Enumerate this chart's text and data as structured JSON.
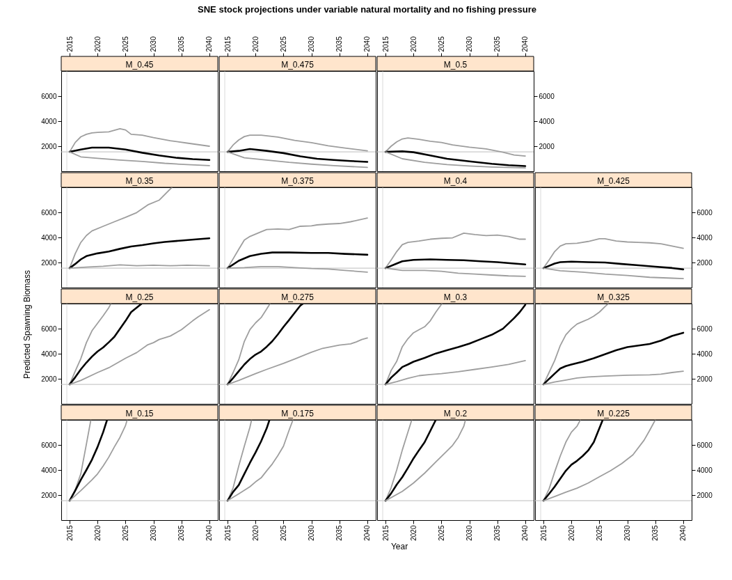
{
  "chart_data": [
    {
      "type": "line",
      "title": "M_0.45",
      "xlim": [
        2013.5,
        2041.5
      ],
      "xticks": [
        2015,
        2020,
        2025,
        2030,
        2035,
        2040
      ],
      "ylim": [
        0,
        8000
      ],
      "yticks": [
        2000,
        4000,
        6000
      ],
      "ref_lines": [
        {
          "axis": "y",
          "value": 1550,
          "color": "#bdbdbd"
        },
        {
          "axis": "x",
          "value": 2014.5,
          "color": "#d9d9d9"
        }
      ],
      "series": [
        {
          "color": "#9e9e9e",
          "x": [
            2015,
            2016,
            2017,
            2018,
            2019,
            2020,
            2022,
            2024,
            2025,
            2026,
            2028,
            2030,
            2033,
            2036,
            2040
          ],
          "values": [
            1550,
            2300,
            2750,
            2950,
            3060,
            3100,
            3150,
            3390,
            3300,
            2950,
            2880,
            2690,
            2440,
            2250,
            2000
          ]
        },
        {
          "color": "#000000",
          "x": [
            2015,
            2017,
            2019,
            2022,
            2025,
            2028,
            2031,
            2034,
            2037,
            2040
          ],
          "values": [
            1550,
            1740,
            1890,
            1890,
            1740,
            1480,
            1260,
            1080,
            970,
            900
          ]
        },
        {
          "color": "#9e9e9e",
          "x": [
            2015,
            2017,
            2020,
            2024,
            2028,
            2032,
            2036,
            2040
          ],
          "values": [
            1550,
            1150,
            1040,
            900,
            790,
            640,
            530,
            450
          ]
        }
      ]
    },
    {
      "type": "line",
      "title": "M_0.475",
      "xlim": [
        2013.5,
        2041.5
      ],
      "xticks": [
        2015,
        2020,
        2025,
        2030,
        2035,
        2040
      ],
      "ylim": [
        0,
        8000
      ],
      "tick_labels": "x",
      "ref_lines": [
        {
          "axis": "y",
          "value": 1550,
          "color": "#bdbdbd"
        },
        {
          "axis": "x",
          "value": 2014.5,
          "color": "#d9d9d9"
        }
      ],
      "series": [
        {
          "color": "#9e9e9e",
          "x": [
            2015,
            2016,
            2017,
            2018,
            2019,
            2021,
            2024,
            2027,
            2030,
            2033,
            2036,
            2040
          ],
          "values": [
            1550,
            2100,
            2500,
            2770,
            2880,
            2880,
            2730,
            2470,
            2290,
            2030,
            1850,
            1630
          ]
        },
        {
          "color": "#000000",
          "x": [
            2015,
            2017,
            2019,
            2022,
            2025,
            2028,
            2031,
            2034,
            2037,
            2040
          ],
          "values": [
            1550,
            1630,
            1780,
            1630,
            1450,
            1190,
            1000,
            900,
            820,
            750
          ]
        },
        {
          "color": "#9e9e9e",
          "x": [
            2015,
            2018,
            2022,
            2026,
            2030,
            2034,
            2040
          ],
          "values": [
            1550,
            1080,
            900,
            710,
            570,
            450,
            310
          ]
        }
      ]
    },
    {
      "type": "line",
      "title": "M_0.5",
      "xlim": [
        2013.5,
        2041.5
      ],
      "xticks": [
        2015,
        2020,
        2025,
        2030,
        2035,
        2040
      ],
      "ylim": [
        0,
        8000
      ],
      "yticks": [
        2000,
        4000,
        6000
      ],
      "ref_lines": [
        {
          "axis": "y",
          "value": 1550,
          "color": "#bdbdbd"
        },
        {
          "axis": "x",
          "value": 2014.5,
          "color": "#d9d9d9"
        }
      ],
      "series": [
        {
          "color": "#9e9e9e",
          "x": [
            2015,
            2016,
            2017,
            2018,
            2019,
            2021,
            2023,
            2025,
            2027,
            2030,
            2033,
            2036,
            2038,
            2040
          ],
          "values": [
            1550,
            2000,
            2350,
            2580,
            2660,
            2550,
            2400,
            2300,
            2110,
            1920,
            1780,
            1520,
            1300,
            1220
          ]
        },
        {
          "color": "#000000",
          "x": [
            2015,
            2018,
            2020,
            2023,
            2026,
            2030,
            2034,
            2037,
            2040
          ],
          "values": [
            1550,
            1590,
            1520,
            1260,
            1000,
            790,
            600,
            490,
            420
          ]
        },
        {
          "color": "#9e9e9e",
          "x": [
            2015,
            2018,
            2022,
            2026,
            2030,
            2034,
            2040
          ],
          "values": [
            1550,
            1000,
            710,
            530,
            420,
            340,
            270
          ]
        }
      ]
    },
    {
      "type": "line",
      "title": "M_0.35",
      "xlim": [
        2013.5,
        2041.5
      ],
      "ylim": [
        0,
        8000
      ],
      "yticks": [
        2000,
        4000,
        6000
      ],
      "tick_labels": "y",
      "ref_lines": [
        {
          "axis": "y",
          "value": 1550,
          "color": "#bdbdbd"
        },
        {
          "axis": "x",
          "value": 2014.5,
          "color": "#d9d9d9"
        }
      ],
      "series": [
        {
          "color": "#9e9e9e",
          "x": [
            2015,
            2016,
            2017,
            2018,
            2019,
            2021,
            2023,
            2025,
            2027,
            2029,
            2031,
            2033.3
          ],
          "values": [
            1550,
            2700,
            3600,
            4150,
            4520,
            4890,
            5250,
            5600,
            5980,
            6600,
            6970,
            8000
          ]
        },
        {
          "color": "#000000",
          "x": [
            2015,
            2016,
            2017,
            2018,
            2020,
            2022,
            2024,
            2026,
            2028,
            2030,
            2032,
            2035,
            2038,
            2040
          ],
          "values": [
            1550,
            1880,
            2250,
            2510,
            2730,
            2870,
            3090,
            3280,
            3390,
            3530,
            3640,
            3750,
            3860,
            3930
          ]
        },
        {
          "color": "#9e9e9e",
          "x": [
            2015,
            2018,
            2021,
            2024,
            2027,
            2030,
            2033,
            2036,
            2040
          ],
          "values": [
            1550,
            1630,
            1700,
            1810,
            1740,
            1780,
            1740,
            1780,
            1740
          ]
        }
      ]
    },
    {
      "type": "line",
      "title": "M_0.375",
      "xlim": [
        2013.5,
        2041.5
      ],
      "ylim": [
        0,
        8000
      ],
      "tick_labels": false,
      "ref_lines": [
        {
          "axis": "y",
          "value": 1550,
          "color": "#bdbdbd"
        },
        {
          "axis": "x",
          "value": 2014.5,
          "color": "#d9d9d9"
        }
      ],
      "series": [
        {
          "color": "#9e9e9e",
          "x": [
            2015,
            2016,
            2017,
            2018,
            2019,
            2021,
            2022,
            2024,
            2026,
            2028,
            2030,
            2031,
            2033,
            2035,
            2037,
            2040
          ],
          "values": [
            1550,
            2300,
            3060,
            3790,
            4080,
            4450,
            4630,
            4670,
            4630,
            4890,
            4920,
            5000,
            5070,
            5110,
            5250,
            5550
          ]
        },
        {
          "color": "#000000",
          "x": [
            2015,
            2017,
            2019,
            2021,
            2023,
            2026,
            2030,
            2033,
            2036,
            2040
          ],
          "values": [
            1550,
            2140,
            2510,
            2690,
            2800,
            2800,
            2760,
            2760,
            2690,
            2620
          ]
        },
        {
          "color": "#9e9e9e",
          "x": [
            2015,
            2018,
            2021,
            2024,
            2027,
            2030,
            2033,
            2036,
            2040
          ],
          "values": [
            1550,
            1590,
            1670,
            1670,
            1590,
            1520,
            1480,
            1370,
            1230
          ]
        }
      ]
    },
    {
      "type": "line",
      "title": "M_0.4",
      "xlim": [
        2013.5,
        2041.5
      ],
      "ylim": [
        0,
        8000
      ],
      "tick_labels": false,
      "ref_lines": [
        {
          "axis": "y",
          "value": 1550,
          "color": "#bdbdbd"
        },
        {
          "axis": "x",
          "value": 2014.5,
          "color": "#d9d9d9"
        }
      ],
      "series": [
        {
          "color": "#9e9e9e",
          "x": [
            2015,
            2016,
            2017,
            2018,
            2019,
            2021,
            2023,
            2025,
            2027,
            2029,
            2031,
            2033,
            2035,
            2037,
            2039,
            2040
          ],
          "values": [
            1550,
            2200,
            2870,
            3420,
            3600,
            3710,
            3860,
            3930,
            3970,
            4340,
            4230,
            4150,
            4190,
            4080,
            3860,
            3860
          ]
        },
        {
          "color": "#000000",
          "x": [
            2015,
            2017,
            2018,
            2020,
            2023,
            2026,
            2029,
            2032,
            2035,
            2038,
            2040
          ],
          "values": [
            1550,
            1920,
            2100,
            2210,
            2250,
            2210,
            2180,
            2100,
            2030,
            1920,
            1850
          ]
        },
        {
          "color": "#9e9e9e",
          "x": [
            2015,
            2018,
            2022,
            2025,
            2028,
            2031,
            2034,
            2037,
            2040
          ],
          "values": [
            1550,
            1370,
            1370,
            1300,
            1150,
            1080,
            1000,
            930,
            900
          ]
        }
      ]
    },
    {
      "type": "line",
      "title": "M_0.425",
      "xlim": [
        2013.5,
        2041.5
      ],
      "ylim": [
        0,
        8000
      ],
      "yticks": [
        2000,
        4000,
        6000
      ],
      "tick_labels": "y",
      "ref_lines": [
        {
          "axis": "y",
          "value": 1550,
          "color": "#bdbdbd"
        },
        {
          "axis": "x",
          "value": 2014.5,
          "color": "#d9d9d9"
        }
      ],
      "series": [
        {
          "color": "#9e9e9e",
          "x": [
            2015,
            2016,
            2017,
            2018,
            2019,
            2021,
            2023,
            2025,
            2026,
            2028,
            2030,
            2032,
            2034,
            2036,
            2038,
            2040
          ],
          "values": [
            1550,
            2200,
            2870,
            3310,
            3490,
            3530,
            3680,
            3900,
            3900,
            3710,
            3640,
            3600,
            3570,
            3490,
            3310,
            3130
          ]
        },
        {
          "color": "#000000",
          "x": [
            2015,
            2017,
            2018,
            2020,
            2023,
            2026,
            2029,
            2032,
            2035,
            2038,
            2040
          ],
          "values": [
            1550,
            1920,
            2030,
            2070,
            2030,
            2000,
            1880,
            1780,
            1670,
            1560,
            1450
          ]
        },
        {
          "color": "#9e9e9e",
          "x": [
            2015,
            2018,
            2022,
            2026,
            2030,
            2034,
            2038,
            2040
          ],
          "values": [
            1550,
            1340,
            1230,
            1080,
            970,
            820,
            750,
            710
          ]
        }
      ]
    },
    {
      "type": "line",
      "title": "M_0.25",
      "xlim": [
        2013.5,
        2041.5
      ],
      "ylim": [
        0,
        8000
      ],
      "yticks": [
        2000,
        4000,
        6000
      ],
      "tick_labels": "y",
      "ref_lines": [
        {
          "axis": "y",
          "value": 1550,
          "color": "#bdbdbd"
        },
        {
          "axis": "x",
          "value": 2014.5,
          "color": "#d9d9d9"
        }
      ],
      "series": [
        {
          "color": "#9e9e9e",
          "x": [
            2015,
            2016,
            2017,
            2018,
            2019,
            2020,
            2021,
            2022,
            2022.4
          ],
          "values": [
            1550,
            2600,
            3610,
            4880,
            5830,
            6430,
            7030,
            7670,
            8000
          ]
        },
        {
          "color": "#000000",
          "x": [
            2015,
            2016,
            2017,
            2018,
            2019,
            2020,
            2021,
            2022,
            2023,
            2024,
            2025,
            2026,
            2027.9
          ],
          "values": [
            1550,
            2120,
            2750,
            3290,
            3770,
            4180,
            4500,
            4910,
            5350,
            5990,
            6620,
            7320,
            8000
          ]
        },
        {
          "color": "#9e9e9e",
          "x": [
            2015,
            2017,
            2020,
            2022,
            2025,
            2027,
            2029,
            2030,
            2031,
            2033,
            2035,
            2037,
            2038,
            2040
          ],
          "values": [
            1550,
            1870,
            2500,
            2880,
            3640,
            4090,
            4720,
            4880,
            5130,
            5410,
            5920,
            6620,
            6940,
            7510
          ]
        }
      ]
    },
    {
      "type": "line",
      "title": "M_0.275",
      "xlim": [
        2013.5,
        2041.5
      ],
      "ylim": [
        0,
        8000
      ],
      "tick_labels": false,
      "ref_lines": [
        {
          "axis": "y",
          "value": 1550,
          "color": "#bdbdbd"
        },
        {
          "axis": "x",
          "value": 2014.5,
          "color": "#d9d9d9"
        }
      ],
      "series": [
        {
          "color": "#9e9e9e",
          "x": [
            2015,
            2016,
            2017,
            2018,
            2019,
            2020,
            2021,
            2022,
            2022.6
          ],
          "values": [
            1550,
            2500,
            3520,
            4980,
            5920,
            6460,
            6880,
            7570,
            8000
          ]
        },
        {
          "color": "#000000",
          "x": [
            2015,
            2016,
            2017,
            2018,
            2019,
            2020,
            2021,
            2022,
            2023,
            2024,
            2025,
            2026,
            2027,
            2028,
            2028.5
          ],
          "values": [
            1550,
            2060,
            2600,
            3140,
            3580,
            3930,
            4180,
            4560,
            5000,
            5540,
            6140,
            6690,
            7260,
            7830,
            8000
          ]
        },
        {
          "color": "#9e9e9e",
          "x": [
            2015,
            2017,
            2020,
            2022,
            2025,
            2027,
            2030,
            2032,
            2035,
            2037,
            2038,
            2039,
            2040
          ],
          "values": [
            1550,
            1870,
            2410,
            2750,
            3230,
            3580,
            4120,
            4430,
            4690,
            4780,
            4940,
            5130,
            5260
          ]
        }
      ]
    },
    {
      "type": "line",
      "title": "M_0.3",
      "xlim": [
        2013.5,
        2041.5
      ],
      "ylim": [
        0,
        8000
      ],
      "tick_labels": false,
      "ref_lines": [
        {
          "axis": "y",
          "value": 1550,
          "color": "#bdbdbd"
        },
        {
          "axis": "x",
          "value": 2014.5,
          "color": "#d9d9d9"
        }
      ],
      "series": [
        {
          "color": "#9e9e9e",
          "x": [
            2015,
            2016,
            2017,
            2018,
            2019,
            2020,
            2021,
            2022,
            2023,
            2024,
            2025.1
          ],
          "values": [
            1550,
            2660,
            3390,
            4560,
            5190,
            5670,
            5920,
            6150,
            6620,
            7320,
            8000
          ]
        },
        {
          "color": "#000000",
          "x": [
            2015,
            2016,
            2017,
            2018,
            2019,
            2020,
            2022,
            2024,
            2026,
            2028,
            2030,
            2032,
            2034,
            2036,
            2038,
            2039,
            2040
          ],
          "values": [
            1550,
            2090,
            2500,
            2940,
            3140,
            3360,
            3670,
            4020,
            4280,
            4530,
            4810,
            5160,
            5510,
            5990,
            6840,
            7320,
            7900
          ]
        },
        {
          "color": "#9e9e9e",
          "x": [
            2015,
            2017,
            2019,
            2021,
            2023,
            2025,
            2028,
            2031,
            2034,
            2037,
            2040
          ],
          "values": [
            1550,
            1770,
            2030,
            2250,
            2340,
            2410,
            2560,
            2750,
            2940,
            3140,
            3450
          ]
        }
      ]
    },
    {
      "type": "line",
      "title": "M_0.325",
      "xlim": [
        2013.5,
        2041.5
      ],
      "ylim": [
        0,
        8000
      ],
      "yticks": [
        2000,
        4000,
        6000
      ],
      "tick_labels": "y",
      "ref_lines": [
        {
          "axis": "y",
          "value": 1550,
          "color": "#bdbdbd"
        },
        {
          "axis": "x",
          "value": 2014.5,
          "color": "#d9d9d9"
        }
      ],
      "series": [
        {
          "color": "#9e9e9e",
          "x": [
            2015,
            2016,
            2017,
            2018,
            2019,
            2020,
            2021,
            2022,
            2023,
            2024,
            2025,
            2026,
            2026.6
          ],
          "values": [
            1550,
            2500,
            3450,
            4650,
            5510,
            5990,
            6370,
            6560,
            6750,
            7000,
            7320,
            7760,
            8000
          ]
        },
        {
          "color": "#000000",
          "x": [
            2015,
            2016,
            2017,
            2018,
            2019,
            2020,
            2022,
            2024,
            2026,
            2028,
            2030,
            2032,
            2034,
            2036,
            2038,
            2040
          ],
          "values": [
            1550,
            1990,
            2410,
            2820,
            3010,
            3140,
            3360,
            3640,
            3960,
            4280,
            4530,
            4650,
            4780,
            5040,
            5420,
            5670
          ]
        },
        {
          "color": "#9e9e9e",
          "x": [
            2015,
            2017,
            2019,
            2021,
            2023,
            2026,
            2030,
            2034,
            2036,
            2038,
            2040
          ],
          "values": [
            1550,
            1740,
            1900,
            2060,
            2150,
            2220,
            2280,
            2310,
            2370,
            2500,
            2600
          ]
        }
      ]
    },
    {
      "type": "line",
      "title": "M_0.15",
      "xlim": [
        2013.5,
        2041.5
      ],
      "xticks": [
        2015,
        2020,
        2025,
        2030,
        2035,
        2040
      ],
      "ylim": [
        0,
        8000
      ],
      "yticks": [
        2000,
        4000,
        6000
      ],
      "ref_lines": [
        {
          "axis": "y",
          "value": 1550,
          "color": "#bdbdbd"
        },
        {
          "axis": "x",
          "value": 2014.5,
          "color": "#d9d9d9"
        }
      ],
      "series": [
        {
          "color": "#9e9e9e",
          "x": [
            2015,
            2016,
            2017,
            2018,
            2018.8
          ],
          "values": [
            1550,
            2420,
            3690,
            6060,
            8000
          ]
        },
        {
          "color": "#000000",
          "x": [
            2015,
            2016,
            2017,
            2018,
            2019,
            2020,
            2021,
            2021.7
          ],
          "values": [
            1550,
            2350,
            3210,
            4000,
            4830,
            5840,
            7020,
            8000
          ]
        },
        {
          "color": "#9e9e9e",
          "x": [
            2015,
            2017,
            2019,
            2020,
            2021,
            2022,
            2023,
            2024,
            2025,
            2025.3
          ],
          "values": [
            1550,
            2350,
            3210,
            3690,
            4320,
            5020,
            5840,
            6600,
            7550,
            8000
          ]
        }
      ]
    },
    {
      "type": "line",
      "title": "M_0.175",
      "xlim": [
        2013.5,
        2041.5
      ],
      "xticks": [
        2015,
        2020,
        2025,
        2030,
        2035,
        2040
      ],
      "ylim": [
        0,
        8000
      ],
      "tick_labels": "x",
      "ref_lines": [
        {
          "axis": "y",
          "value": 1550,
          "color": "#bdbdbd"
        },
        {
          "axis": "x",
          "value": 2014.5,
          "color": "#d9d9d9"
        }
      ],
      "series": [
        {
          "color": "#9e9e9e",
          "x": [
            2015,
            2016,
            2017,
            2018,
            2019,
            2019.3
          ],
          "values": [
            1550,
            2580,
            4320,
            5900,
            7420,
            8000
          ]
        },
        {
          "color": "#000000",
          "x": [
            2015,
            2016,
            2017,
            2018,
            2019,
            2020,
            2021,
            2022,
            2022.5
          ],
          "values": [
            1550,
            2260,
            2800,
            3690,
            4570,
            5400,
            6290,
            7330,
            8000
          ]
        },
        {
          "color": "#9e9e9e",
          "x": [
            2015,
            2017,
            2019,
            2020,
            2021,
            2022,
            2023,
            2024,
            2025,
            2026,
            2026.7
          ],
          "values": [
            1550,
            2100,
            2670,
            3050,
            3370,
            3940,
            4480,
            5150,
            5900,
            7170,
            8000
          ]
        }
      ]
    },
    {
      "type": "line",
      "title": "M_0.2",
      "xlim": [
        2013.5,
        2041.5
      ],
      "xticks": [
        2015,
        2020,
        2025,
        2030,
        2035,
        2040
      ],
      "ylim": [
        0,
        8000
      ],
      "tick_labels": "x",
      "ref_lines": [
        {
          "axis": "y",
          "value": 1550,
          "color": "#bdbdbd"
        },
        {
          "axis": "x",
          "value": 2014.5,
          "color": "#d9d9d9"
        }
      ],
      "series": [
        {
          "color": "#9e9e9e",
          "x": [
            2015,
            2016,
            2017,
            2018,
            2019,
            2019.7
          ],
          "values": [
            1550,
            2580,
            4000,
            5590,
            7010,
            8000
          ]
        },
        {
          "color": "#000000",
          "x": [
            2015,
            2016,
            2017,
            2018,
            2019,
            2020,
            2021,
            2022,
            2023,
            2024
          ],
          "values": [
            1550,
            2130,
            2830,
            3430,
            4160,
            4920,
            5590,
            6220,
            7110,
            8000
          ]
        },
        {
          "color": "#9e9e9e",
          "x": [
            2015,
            2018,
            2020,
            2022,
            2024,
            2026,
            2027,
            2028,
            2029,
            2029.3
          ],
          "values": [
            1550,
            2290,
            2960,
            3750,
            4640,
            5520,
            5970,
            6600,
            7490,
            8000
          ]
        }
      ]
    },
    {
      "type": "line",
      "title": "M_0.225",
      "xlim": [
        2013.5,
        2041.5
      ],
      "xticks": [
        2015,
        2020,
        2025,
        2030,
        2035,
        2040
      ],
      "ylim": [
        0,
        8000
      ],
      "yticks": [
        2000,
        4000,
        6000
      ],
      "ref_lines": [
        {
          "axis": "y",
          "value": 1550,
          "color": "#bdbdbd"
        },
        {
          "axis": "x",
          "value": 2014.5,
          "color": "#d9d9d9"
        }
      ],
      "series": [
        {
          "color": "#9e9e9e",
          "x": [
            2015,
            2016,
            2017,
            2018,
            2019,
            2020,
            2021,
            2021.6
          ],
          "values": [
            1550,
            2480,
            3840,
            5110,
            6220,
            7020,
            7490,
            8000
          ]
        },
        {
          "color": "#000000",
          "x": [
            2015,
            2016,
            2017,
            2018,
            2019,
            2020,
            2021,
            2022,
            2023,
            2024,
            2025,
            2025.6
          ],
          "values": [
            1550,
            2100,
            2670,
            3310,
            3940,
            4420,
            4730,
            5110,
            5560,
            6220,
            7330,
            8000
          ]
        },
        {
          "color": "#9e9e9e",
          "x": [
            2015,
            2017,
            2019,
            2021,
            2023,
            2025,
            2027,
            2029,
            2031,
            2033,
            2034,
            2035
          ],
          "values": [
            1550,
            1880,
            2230,
            2550,
            2960,
            3460,
            3940,
            4510,
            5210,
            6380,
            7170,
            8000
          ]
        }
      ]
    },
    {
      "type": "other",
      "title": "SNE stock projections under variable natural mortality and no fishing pressure",
      "xlabel": "Year",
      "ylabel": "Predicted Spawning Biomass"
    }
  ]
}
